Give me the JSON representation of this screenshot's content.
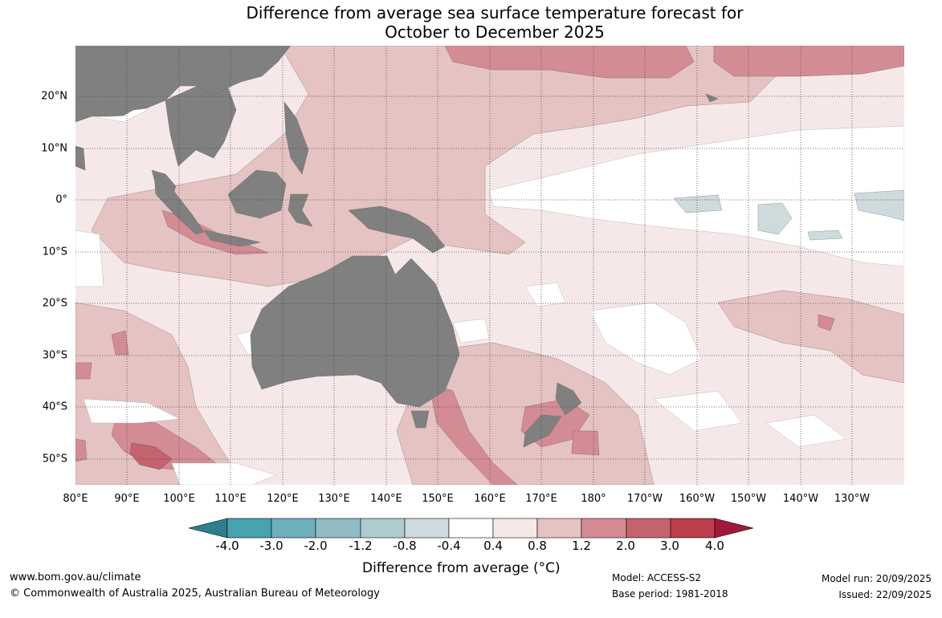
{
  "title": {
    "line1": "Difference from average sea surface temperature forecast for",
    "line2": "October to December 2025"
  },
  "axes": {
    "lon_labels": [
      "80°E",
      "90°E",
      "100°E",
      "110°E",
      "120°E",
      "130°E",
      "140°E",
      "150°E",
      "160°E",
      "170°E",
      "180°",
      "170°W",
      "160°W",
      "150°W",
      "140°W",
      "130°W"
    ],
    "lat_labels": [
      "20°N",
      "10°N",
      "0°",
      "10°S",
      "20°S",
      "30°S",
      "40°S",
      "50°S"
    ]
  },
  "colorbar": {
    "title": "Difference from average (°C)",
    "levels": [
      "-4.0",
      "-3.0",
      "-2.0",
      "-1.2",
      "-0.8",
      "-0.4",
      "0.4",
      "0.8",
      "1.2",
      "2.0",
      "3.0",
      "4.0"
    ],
    "colors": [
      "#2e7f8a",
      "#47a2b1",
      "#6eafbd",
      "#8fbcc5",
      "#aecbd0",
      "#cfdadc",
      "#ffffff",
      "#f6e8e8",
      "#e5c3c2",
      "#d48c94",
      "#c4636f",
      "#bc3f4c",
      "#a31836"
    ]
  },
  "palette": {
    "land": "#808080",
    "grid": "#444444"
  },
  "footer": {
    "website": "www.bom.gov.au/climate",
    "copyright": "© Commonwealth of Australia 2025, Australian Bureau of Meteorology",
    "model": "Model: ACCESS-S2",
    "base_period": "Base period: 1981-2018",
    "model_run": "Model run: 20/09/2025",
    "issued": "Issued: 22/09/2025"
  }
}
